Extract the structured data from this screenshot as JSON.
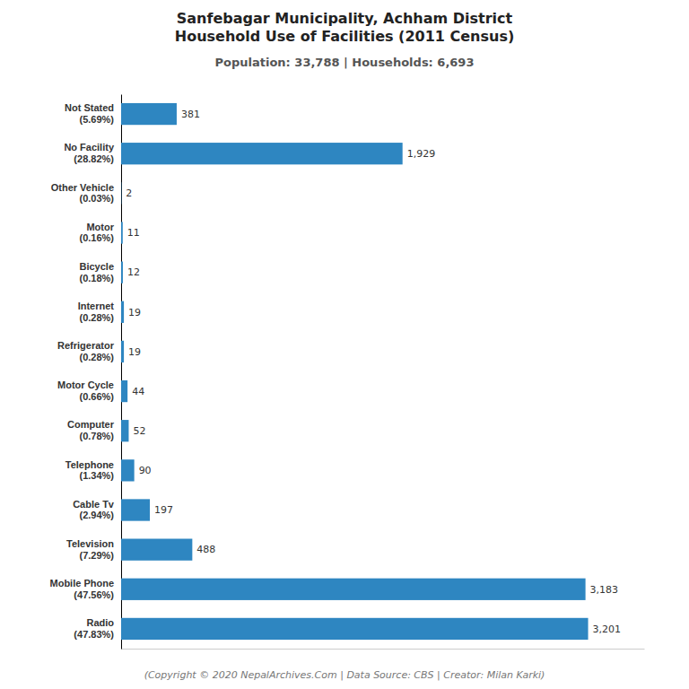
{
  "chart_data": {
    "type": "bar",
    "orientation": "horizontal",
    "title": [
      "Sanfebagar Municipality, Achham District",
      "Household Use of Facilities (2011 Census)"
    ],
    "subtitle": "Population: 33,788 | Households: 6,693",
    "annotations": [
      "(Copyright © 2020 NepalArchives.Com | Data Source: CBS | Creator: Milan Karki)"
    ],
    "categories": [
      "Not Stated\n(5.69%)",
      "No Facility\n(28.82%)",
      "Other Vehicle\n(0.03%)",
      "Motor\n(0.16%)",
      "Bicycle\n(0.18%)",
      "Internet\n(0.28%)",
      "Refrigerator\n(0.28%)",
      "Motor Cycle\n(0.66%)",
      "Computer\n(0.78%)",
      "Telephone\n(1.34%)",
      "Cable Tv\n(2.94%)",
      "Television\n(7.29%)",
      "Mobile Phone\n(47.56%)",
      "Radio\n(47.83%)"
    ],
    "values": [
      381,
      1929,
      2,
      11,
      12,
      19,
      19,
      44,
      52,
      90,
      197,
      488,
      3183,
      3201
    ],
    "value_labels": [
      "381",
      "1,929",
      "2",
      "11",
      "12",
      "19",
      "19",
      "44",
      "52",
      "90",
      "197",
      "488",
      "3,183",
      "3,201"
    ],
    "data_labels": true,
    "color": "#2e86c1",
    "xlim": [
      0,
      3585.12
    ],
    "tick_labels": false,
    "grid": false
  }
}
